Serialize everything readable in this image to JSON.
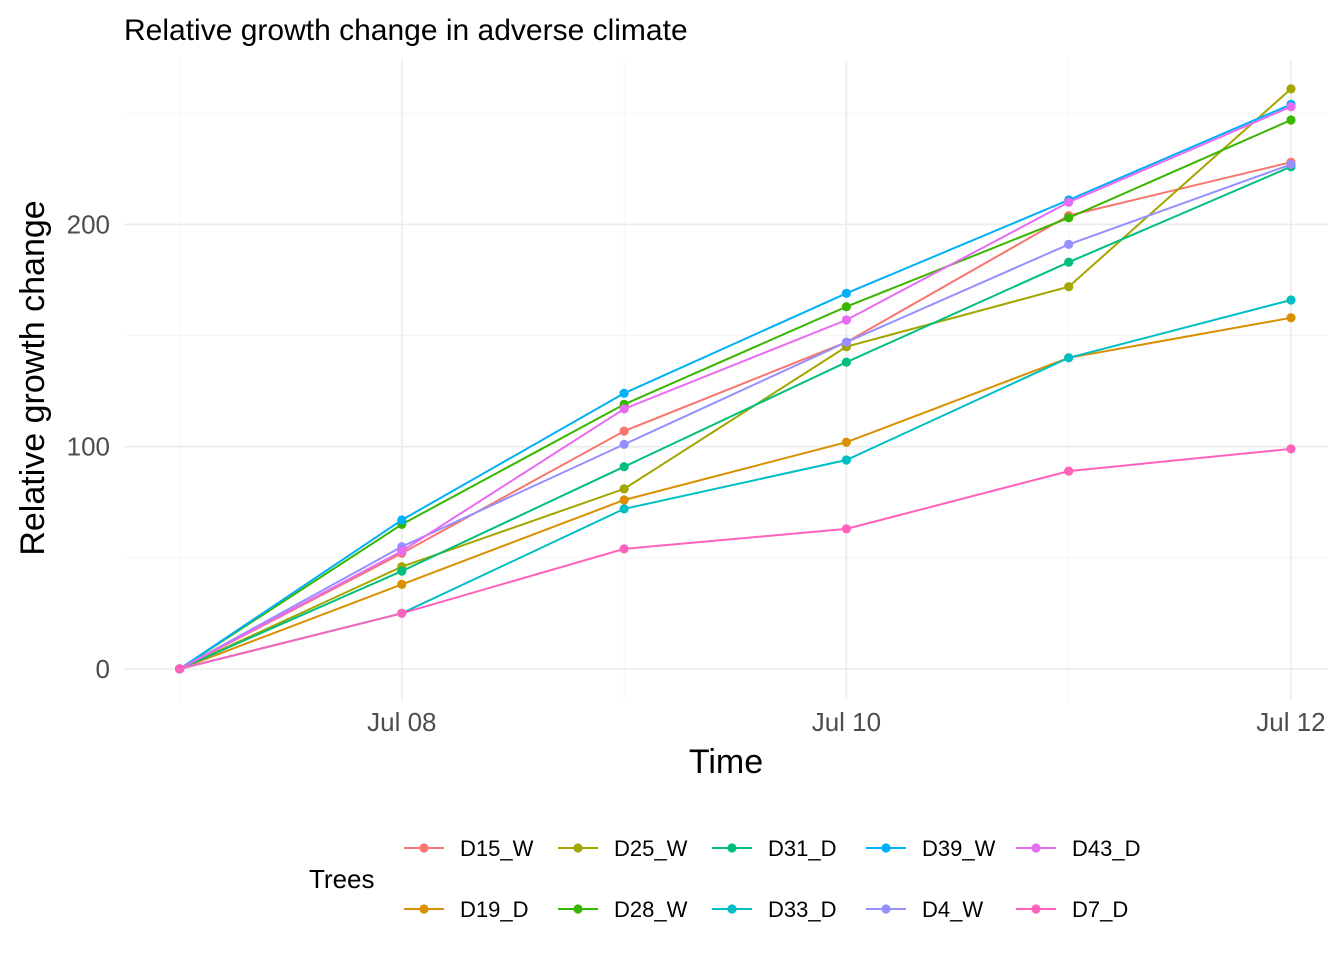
{
  "chart_data": {
    "type": "line",
    "title": "Relative growth change in adverse climate",
    "xlabel": "Time",
    "ylabel": "Relative growth change",
    "x": [
      "2024-07-07",
      "2024-07-08",
      "2024-07-09",
      "2024-07-10",
      "2024-07-11",
      "2024-07-12"
    ],
    "x_ticks": [
      {
        "x": "2024-07-08",
        "label": "Jul 08"
      },
      {
        "x": "2024-07-10",
        "label": "Jul 10"
      },
      {
        "x": "2024-07-12",
        "label": "Jul 12"
      }
    ],
    "y_ticks": [
      0,
      100,
      200
    ],
    "xlim": [
      "2024-07-06 18:00",
      "2024-07-12 04:00"
    ],
    "ylim": [
      -14,
      274
    ],
    "grid": true,
    "legend": {
      "title": "Trees",
      "position": "bottom"
    },
    "series": [
      {
        "name": "D15_W",
        "color": "#F8766D",
        "values": [
          0,
          52,
          107,
          147,
          204,
          228
        ]
      },
      {
        "name": "D19_D",
        "color": "#D89000",
        "values": [
          0,
          38,
          76,
          102,
          140,
          158
        ]
      },
      {
        "name": "D25_W",
        "color": "#A3A500",
        "values": [
          0,
          46,
          81,
          145,
          172,
          261
        ]
      },
      {
        "name": "D28_W",
        "color": "#39B600",
        "values": [
          0,
          65,
          119,
          163,
          203,
          247
        ]
      },
      {
        "name": "D31_D",
        "color": "#00BF7D",
        "values": [
          0,
          44,
          91,
          138,
          183,
          226
        ]
      },
      {
        "name": "D33_D",
        "color": "#00BFC4",
        "values": [
          0,
          25,
          72,
          94,
          140,
          166
        ]
      },
      {
        "name": "D39_W",
        "color": "#00B0F6",
        "values": [
          0,
          67,
          124,
          169,
          211,
          254
        ]
      },
      {
        "name": "D4_W",
        "color": "#9590FF",
        "values": [
          0,
          55,
          101,
          147,
          191,
          227
        ]
      },
      {
        "name": "D43_D",
        "color": "#E76BF3",
        "values": [
          0,
          53,
          117,
          157,
          210,
          253
        ]
      },
      {
        "name": "D7_D",
        "color": "#FF62BC",
        "values": [
          0,
          25,
          54,
          63,
          89,
          99
        ]
      }
    ]
  }
}
